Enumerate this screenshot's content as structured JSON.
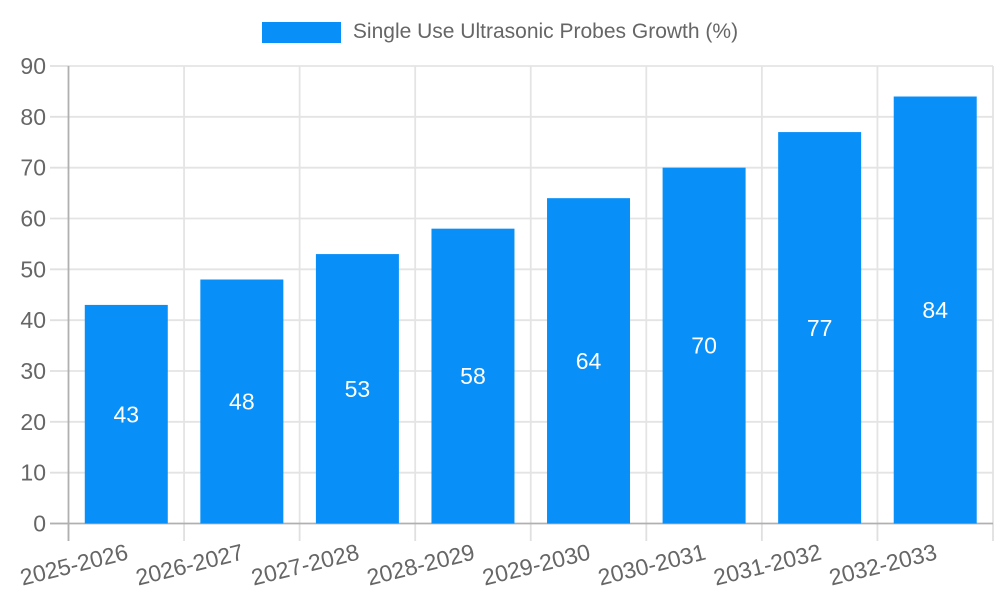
{
  "chart_data": {
    "type": "bar",
    "title": "",
    "legend_label": "Single Use Ultrasonic Probes Growth (%)",
    "legend_position": "top",
    "categories": [
      "2025-2026",
      "2026-2027",
      "2027-2028",
      "2028-2029",
      "2029-2030",
      "2030-2031",
      "2031-2032",
      "2032-2033"
    ],
    "series": [
      {
        "name": "Single Use Ultrasonic Probes Growth (%)",
        "values": [
          43,
          48,
          53,
          58,
          64,
          70,
          77,
          84
        ]
      }
    ],
    "values": [
      43,
      48,
      53,
      58,
      64,
      70,
      77,
      84
    ],
    "bar_value_labels": [
      "43",
      "48",
      "53",
      "58",
      "64",
      "70",
      "77",
      "84"
    ],
    "xlabel": "",
    "ylabel": "",
    "ylim": [
      0,
      90
    ],
    "yticks": [
      0,
      10,
      20,
      30,
      40,
      50,
      60,
      70,
      80,
      90
    ],
    "grid": true,
    "x_label_rotation_deg": -14,
    "colors": {
      "bar": "#0890f8",
      "axis_line": "#b0b0b0",
      "gridline": "#e4e4e4",
      "tick_mark": "#e0e0e0",
      "tick_text": "#666666",
      "bar_label_text": "#ffffff",
      "background": "#ffffff"
    }
  }
}
